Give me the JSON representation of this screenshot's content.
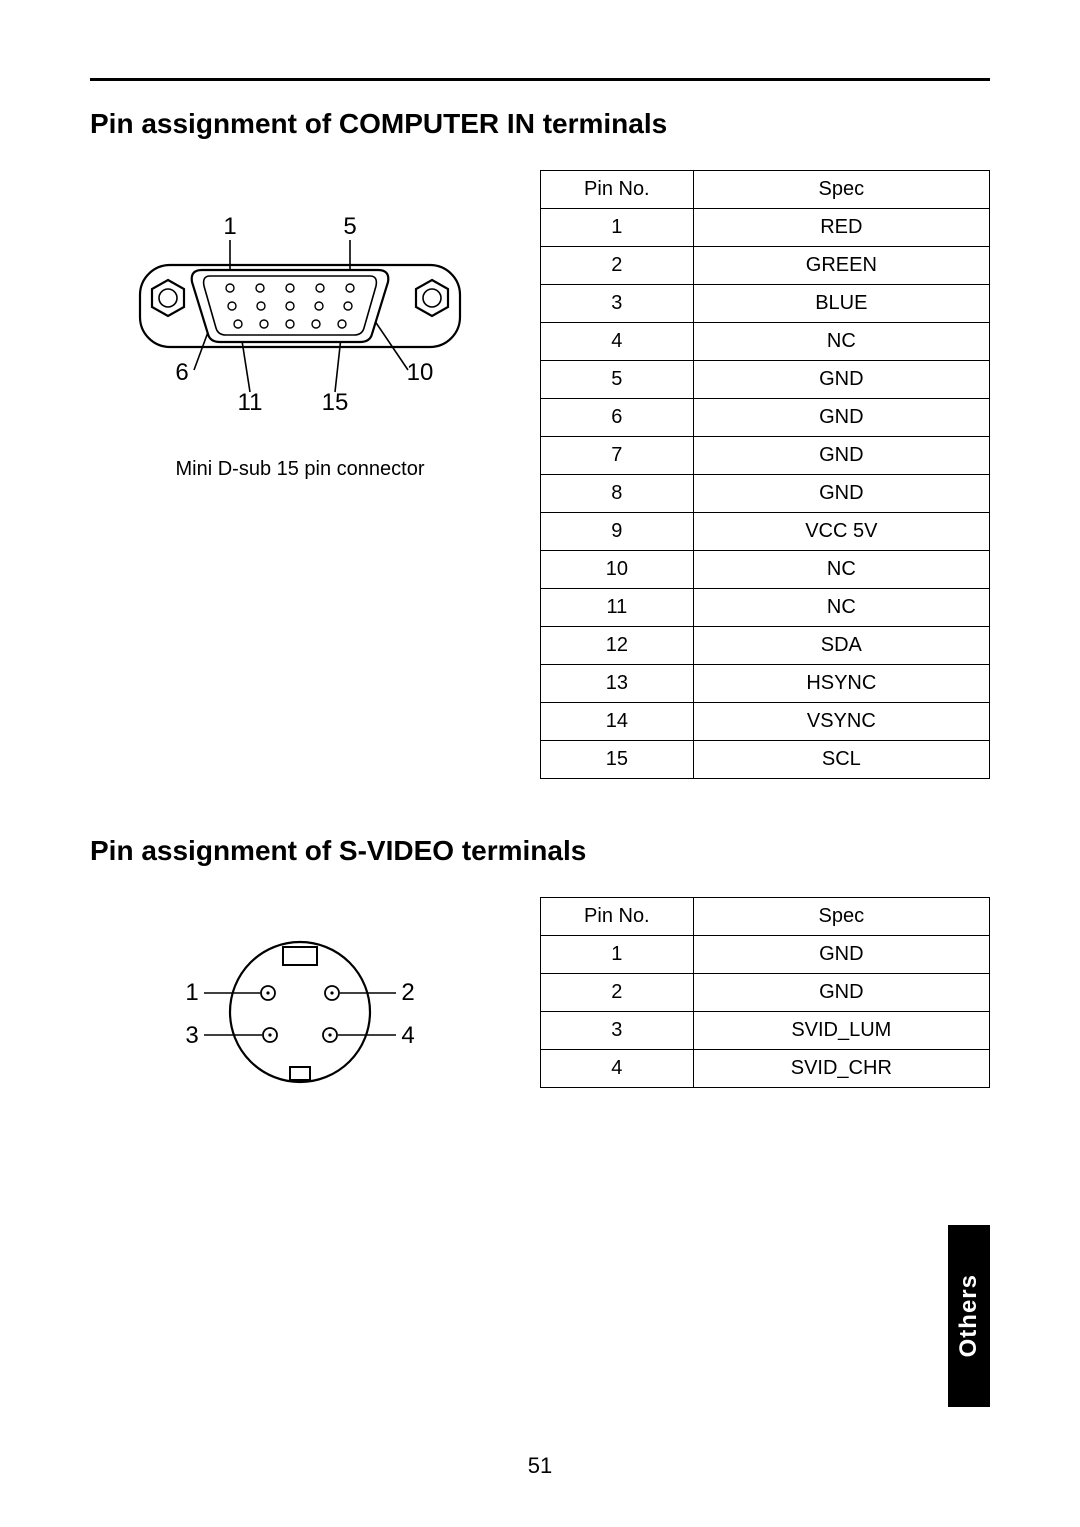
{
  "page": {
    "number": "51",
    "section_tab": "Others"
  },
  "computer_in": {
    "title": "Pin assignment of COMPUTER IN terminals",
    "caption": "Mini D-sub 15 pin connector",
    "diagram_labels": {
      "top_left": "1",
      "top_right": "5",
      "mid_left": "6",
      "mid_right": "10",
      "bot_left": "11",
      "bot_right": "15"
    },
    "table": {
      "headers": [
        "Pin No.",
        "Spec"
      ],
      "rows": [
        [
          "1",
          "RED"
        ],
        [
          "2",
          "GREEN"
        ],
        [
          "3",
          "BLUE"
        ],
        [
          "4",
          "NC"
        ],
        [
          "5",
          "GND"
        ],
        [
          "6",
          "GND"
        ],
        [
          "7",
          "GND"
        ],
        [
          "8",
          "GND"
        ],
        [
          "9",
          "VCC 5V"
        ],
        [
          "10",
          "NC"
        ],
        [
          "11",
          "NC"
        ],
        [
          "12",
          "SDA"
        ],
        [
          "13",
          "HSYNC"
        ],
        [
          "14",
          "VSYNC"
        ],
        [
          "15",
          "SCL"
        ]
      ]
    }
  },
  "svideo": {
    "title": "Pin assignment of S-VIDEO terminals",
    "diagram_labels": {
      "l1": "1",
      "l2": "2",
      "l3": "3",
      "l4": "4"
    },
    "table": {
      "headers": [
        "Pin No.",
        "Spec"
      ],
      "rows": [
        [
          "1",
          "GND"
        ],
        [
          "2",
          "GND"
        ],
        [
          "3",
          "SVID_LUM"
        ],
        [
          "4",
          "SVID_CHR"
        ]
      ]
    }
  },
  "style": {
    "stroke": "#000000",
    "stroke_width": 2.2,
    "stroke_thin": 1.6,
    "font_size_diagram": 24
  }
}
